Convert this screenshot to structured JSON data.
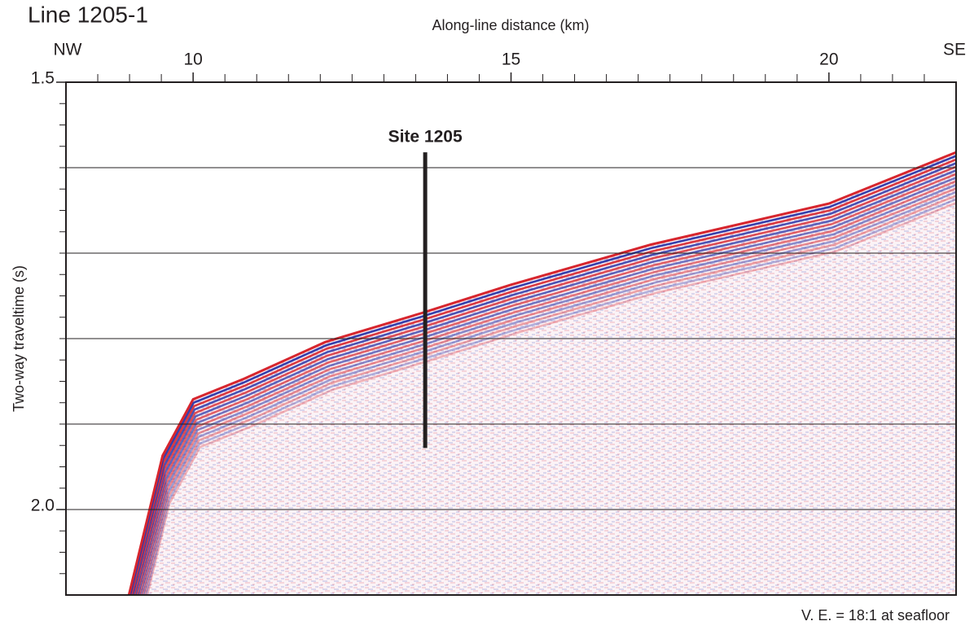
{
  "chart_data": {
    "type": "seismic",
    "title": "Line 1205-1",
    "x_label": "Along-line distance (km)",
    "y_label": "Two-way traveltime (s)",
    "left_end": "NW",
    "right_end": "SE",
    "note": "V. E. = 18:1 at seafloor",
    "xlim": [
      8,
      22
    ],
    "ylim": [
      1.5,
      2.1
    ],
    "y_reversed": true,
    "xticks": [
      10,
      15,
      20
    ],
    "xminorticks": [
      8.5,
      9,
      9.5,
      10.5,
      11,
      11.5,
      12,
      12.5,
      13,
      13.5,
      14,
      14.5,
      15.5,
      16,
      16.5,
      17,
      17.5,
      18,
      18.5,
      19,
      19.5,
      20.5,
      21,
      21.5
    ],
    "yticks": [
      {
        "value": 1.5,
        "label": "1.5"
      },
      {
        "value": 2.0,
        "label": "2.0"
      }
    ],
    "yminorticks": [
      1.525,
      1.55,
      1.575,
      1.6,
      1.625,
      1.65,
      1.675,
      1.7,
      1.725,
      1.75,
      1.775,
      1.8,
      1.825,
      1.85,
      1.875,
      1.9,
      1.925,
      1.95,
      1.975,
      2.025,
      2.05,
      2.075
    ],
    "grid_lines": [
      1.6,
      1.7,
      1.8,
      1.9,
      2.0
    ],
    "x": [
      8.99,
      9.52,
      10.0,
      10.8,
      12.08,
      13.6,
      15.0,
      17.2,
      20.0,
      21.9,
      22
    ],
    "series": [
      {
        "color": "#d7262e",
        "values": [
          2.1,
          1.937,
          1.871,
          1.847,
          1.804,
          1.77,
          1.737,
          1.69,
          1.642,
          1.585,
          1.582
        ]
      }
    ],
    "annotations": [
      {
        "text": "Site 1205",
        "x": 13.65,
        "y_top": 1.582,
        "y_bottom": 1.928
      }
    ]
  }
}
